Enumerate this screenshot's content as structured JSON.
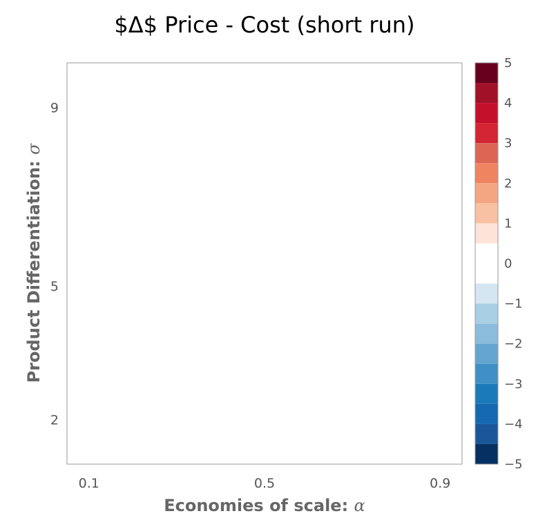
{
  "chart_data": {
    "type": "heatmap",
    "title": "$Δ$ Price - Cost (short run)",
    "xlabel": {
      "text": "Economies of scale: ",
      "symbol": "α"
    },
    "ylabel": {
      "text": "Product Differentiation: ",
      "symbol": "σ"
    },
    "x_ticks": [
      {
        "value": 0.1,
        "label": "0.1"
      },
      {
        "value": 0.5,
        "label": "0.5"
      },
      {
        "value": 0.9,
        "label": "0.9"
      }
    ],
    "y_ticks": [
      {
        "value": 2,
        "label": "2"
      },
      {
        "value": 5,
        "label": "5"
      },
      {
        "value": 9,
        "label": "9"
      }
    ],
    "xlim": [
      0.05,
      0.95
    ],
    "ylim": [
      1,
      10
    ],
    "values": "all cells at 0 (white)",
    "colorbar": {
      "range": [
        -5,
        5
      ],
      "ticks": [
        {
          "value": 5,
          "label": "5"
        },
        {
          "value": 4,
          "label": "4"
        },
        {
          "value": 3,
          "label": "3"
        },
        {
          "value": 2,
          "label": "2"
        },
        {
          "value": 1,
          "label": "1"
        },
        {
          "value": 0,
          "label": "0"
        },
        {
          "value": -1,
          "label": "−1"
        },
        {
          "value": -2,
          "label": "−2"
        },
        {
          "value": -3,
          "label": "−3"
        },
        {
          "value": -4,
          "label": "−4"
        },
        {
          "value": -5,
          "label": "−5"
        }
      ],
      "bands": [
        {
          "from": 4.5,
          "to": 5.0,
          "color": "#67001f"
        },
        {
          "from": 4.0,
          "to": 4.5,
          "color": "#a11228"
        },
        {
          "from": 3.5,
          "to": 4.0,
          "color": "#c5102b"
        },
        {
          "from": 3.0,
          "to": 3.5,
          "color": "#d32533"
        },
        {
          "from": 2.5,
          "to": 3.0,
          "color": "#dc6554"
        },
        {
          "from": 2.0,
          "to": 2.5,
          "color": "#ef8460"
        },
        {
          "from": 1.5,
          "to": 2.0,
          "color": "#f4a581"
        },
        {
          "from": 1.0,
          "to": 1.5,
          "color": "#f8c1a3"
        },
        {
          "from": 0.5,
          "to": 1.0,
          "color": "#fde4d8"
        },
        {
          "from": -0.5,
          "to": 0.5,
          "color": "#ffffff"
        },
        {
          "from": -1.0,
          "to": -0.5,
          "color": "#d4e6f1"
        },
        {
          "from": -1.5,
          "to": -1.0,
          "color": "#a9cfe5"
        },
        {
          "from": -2.0,
          "to": -1.5,
          "color": "#8cbcdc"
        },
        {
          "from": -2.5,
          "to": -2.0,
          "color": "#64a5d0"
        },
        {
          "from": -3.0,
          "to": -2.5,
          "color": "#4190c5"
        },
        {
          "from": -3.5,
          "to": -3.0,
          "color": "#1b7ab9"
        },
        {
          "from": -4.0,
          "to": -3.5,
          "color": "#1469b1"
        },
        {
          "from": -4.5,
          "to": -4.0,
          "color": "#1b569a"
        },
        {
          "from": -5.0,
          "to": -4.5,
          "color": "#053061"
        }
      ]
    }
  }
}
